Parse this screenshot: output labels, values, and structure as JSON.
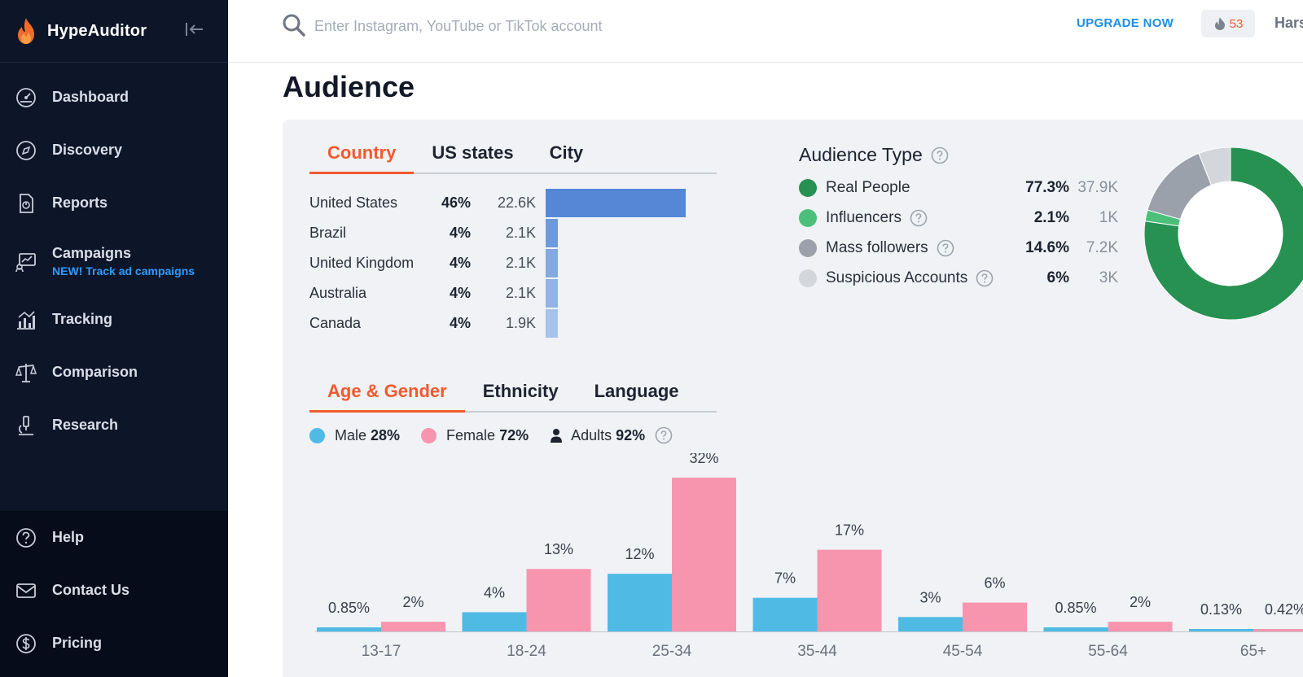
{
  "brand": {
    "name": "HypeAuditor"
  },
  "sidebar": {
    "items": [
      {
        "label": "Dashboard",
        "icon": "dashboard-icon"
      },
      {
        "label": "Discovery",
        "icon": "compass-icon"
      },
      {
        "label": "Reports",
        "icon": "report-icon"
      },
      {
        "label": "Campaigns",
        "sub": "NEW! Track ad campaigns",
        "icon": "campaign-icon"
      },
      {
        "label": "Tracking",
        "icon": "tracking-icon"
      },
      {
        "label": "Comparison",
        "icon": "scales-icon"
      },
      {
        "label": "Research",
        "icon": "microscope-icon"
      }
    ],
    "bottom": [
      {
        "label": "Help",
        "icon": "help-circle-icon"
      },
      {
        "label": "Contact Us",
        "icon": "mail-icon"
      },
      {
        "label": "Pricing",
        "icon": "dollar-icon"
      }
    ]
  },
  "header": {
    "search_placeholder": "Enter Instagram, YouTube or TikTok account",
    "upgrade_label": "UPGRADE NOW",
    "credits": "53",
    "user": "Hars"
  },
  "page": {
    "title": "Audience"
  },
  "geo": {
    "tabs": [
      "Country",
      "US states",
      "City"
    ],
    "active_tab": "Country",
    "rows": [
      {
        "name": "United States",
        "pct": "46%",
        "value": "22.6K",
        "share": 46,
        "color": "#5488d6"
      },
      {
        "name": "Brazil",
        "pct": "4%",
        "value": "2.1K",
        "share": 4,
        "color": "#6e99db"
      },
      {
        "name": "United Kingdom",
        "pct": "4%",
        "value": "2.1K",
        "share": 4,
        "color": "#84a8e0"
      },
      {
        "name": "Australia",
        "pct": "4%",
        "value": "2.1K",
        "share": 4,
        "color": "#93b3e5"
      },
      {
        "name": "Canada",
        "pct": "4%",
        "value": "1.9K",
        "share": 4,
        "color": "#a6c1ea"
      }
    ]
  },
  "audience_type": {
    "title": "Audience Type",
    "items": [
      {
        "name": "Real People",
        "pct": "77.3%",
        "count": "37.9K",
        "value": 77.3,
        "color": "#279152",
        "help": false
      },
      {
        "name": "Influencers",
        "pct": "2.1%",
        "count": "1K",
        "value": 2.1,
        "color": "#4cc07a",
        "help": true
      },
      {
        "name": "Mass followers",
        "pct": "14.6%",
        "count": "7.2K",
        "value": 14.6,
        "color": "#9aa1aa",
        "help": true
      },
      {
        "name": "Suspicious Accounts",
        "pct": "6%",
        "count": "3K",
        "value": 6,
        "color": "#d3d7dc",
        "help": true
      }
    ]
  },
  "demo": {
    "tabs": [
      "Age & Gender",
      "Ethnicity",
      "Language"
    ],
    "active_tab": "Age & Gender",
    "male_label": "Male",
    "male_pct": "28%",
    "female_label": "Female",
    "female_pct": "72%",
    "adults_label": "Adults",
    "adults_pct": "92%",
    "male_color": "#4fbbe5",
    "female_color": "#f795ae"
  },
  "chart_data": {
    "type": "bar",
    "categories": [
      "13-17",
      "18-24",
      "25-34",
      "35-44",
      "45-54",
      "55-64",
      "65+"
    ],
    "series": [
      {
        "name": "Male",
        "values": [
          0.85,
          4,
          12,
          7,
          3,
          0.85,
          0.13
        ],
        "labels": [
          "0.85%",
          "4%",
          "12%",
          "7%",
          "3%",
          "0.85%",
          "0.13%"
        ]
      },
      {
        "name": "Female",
        "values": [
          2,
          13,
          32,
          17,
          6,
          2,
          0.42
        ],
        "labels": [
          "2%",
          "13%",
          "32%",
          "17%",
          "6%",
          "2%",
          "0.42%"
        ]
      }
    ],
    "ylim": [
      0,
      32
    ]
  }
}
